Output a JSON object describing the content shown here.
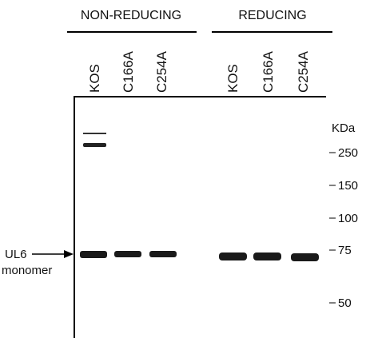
{
  "groups": [
    {
      "label": "NON-REDUCING",
      "lanes": [
        "KOS",
        "C166A",
        "C254A"
      ]
    },
    {
      "label": "REDUCING",
      "lanes": [
        "KOS",
        "C166A",
        "C254A"
      ]
    }
  ],
  "markers": {
    "unit": "KDa",
    "labels": [
      "250",
      "150",
      "100",
      "75",
      "50"
    ]
  },
  "band_label": {
    "name": "UL6",
    "description": "monomer"
  }
}
